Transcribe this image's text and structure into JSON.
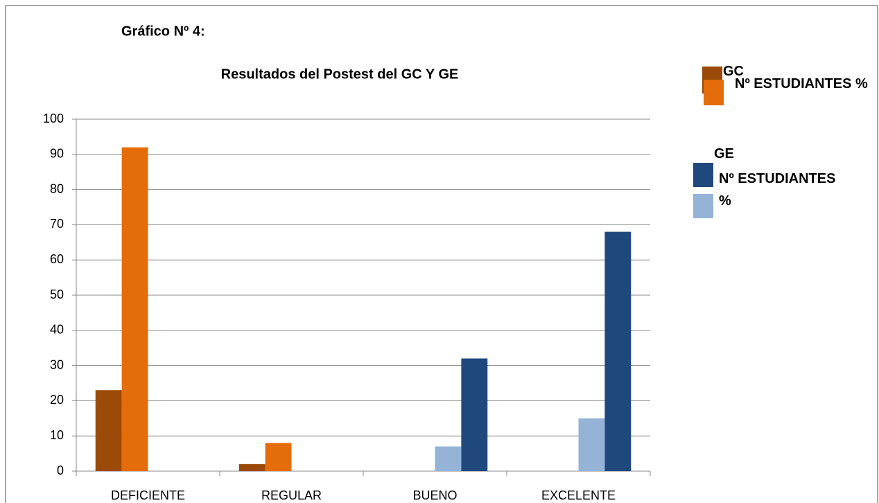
{
  "chart_data": {
    "type": "bar",
    "title": "Gráfico Nº 4:",
    "subtitle": "Resultados del Postest  del GC Y GE",
    "legend_group_title": "GE",
    "categories": [
      "DEFICIENTE",
      "REGULAR",
      "BUENO",
      "EXCELENTE"
    ],
    "series": [
      {
        "name": "GC",
        "color": "#9c4a09",
        "values": [
          23,
          2,
          0,
          0
        ]
      },
      {
        "name": "Nº ESTUDIANTES %",
        "color": "#e46c0a",
        "values": [
          92,
          8,
          0,
          0
        ]
      },
      {
        "name": "%",
        "color": "#95b3d7",
        "values": [
          0,
          0,
          7,
          15
        ]
      },
      {
        "name": "Nº ESTUDIANTES",
        "color": "#1f497d",
        "values": [
          0,
          0,
          32,
          68
        ]
      }
    ],
    "ylim": [
      0,
      100
    ],
    "yticks": [
      0,
      10,
      20,
      30,
      40,
      50,
      60,
      70,
      80,
      90,
      100
    ],
    "grid": true
  }
}
